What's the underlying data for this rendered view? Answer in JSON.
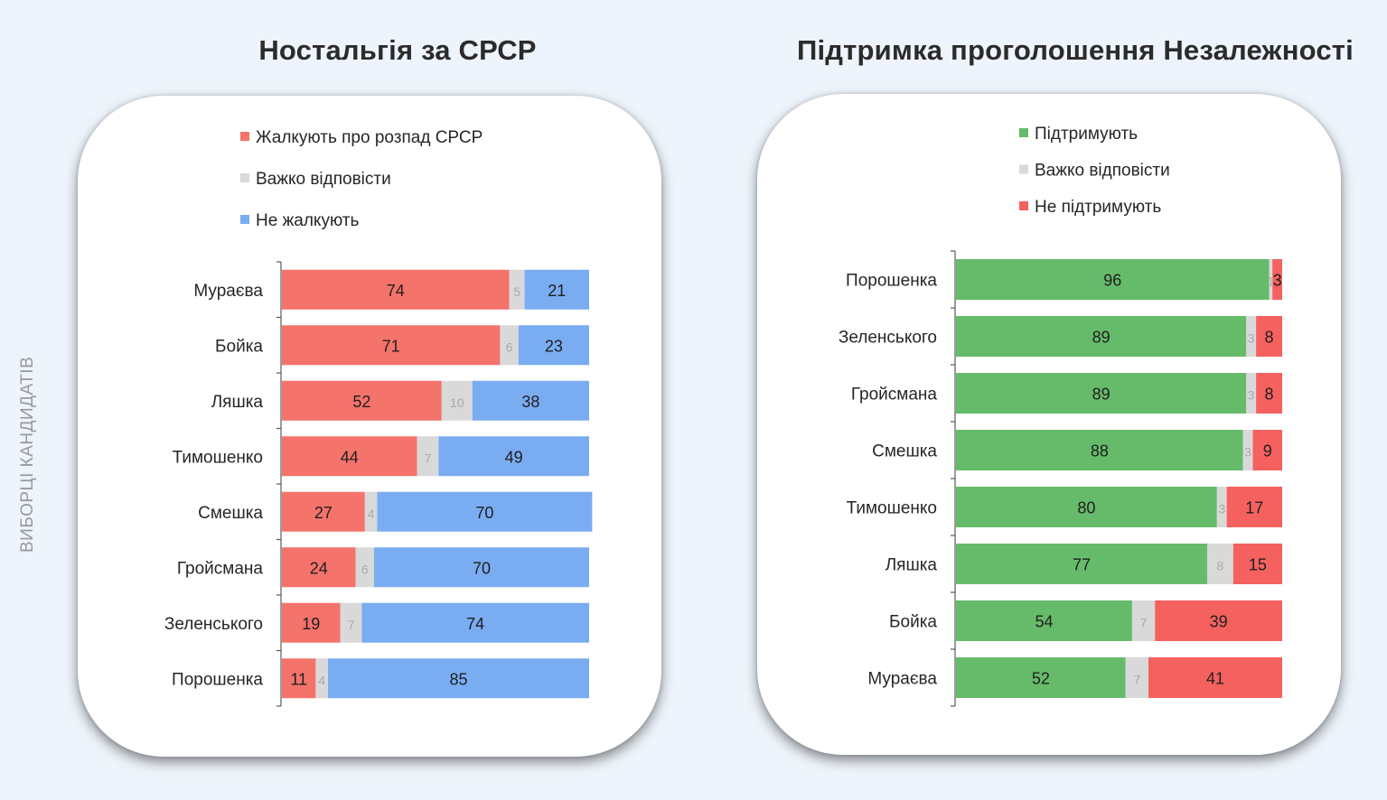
{
  "side_label": "ВИБОРЦІ КАНДИДАТІВ",
  "chart_data": [
    {
      "type": "bar",
      "orientation": "horizontal",
      "stacked": true,
      "title": "Ностальгія за СРСР",
      "categories": [
        "Мураєва",
        "Бойка",
        "Ляшка",
        "Тимошенко",
        "Смешка",
        "Гройсмана",
        "Зеленського",
        "Порошенка"
      ],
      "series": [
        {
          "name": "Жалкують про розпад СРСР",
          "color": "#f4736b",
          "values": [
            74,
            71,
            52,
            44,
            27,
            24,
            19,
            11
          ]
        },
        {
          "name": "Важко відповісти",
          "color": "#d9d9d9",
          "values": [
            5,
            6,
            10,
            7,
            4,
            6,
            7,
            4
          ]
        },
        {
          "name": "Не жалкують",
          "color": "#7aacf2",
          "values": [
            21,
            23,
            38,
            49,
            70,
            70,
            74,
            85
          ]
        }
      ],
      "legend_position": "top",
      "xlim": [
        0,
        100
      ],
      "grid": false
    },
    {
      "type": "bar",
      "orientation": "horizontal",
      "stacked": true,
      "title": "Підтримка проголошення Незалежності",
      "categories": [
        "Порошенка",
        "Зеленського",
        "Гройсмана",
        "Смешка",
        "Тимошенко",
        "Ляшка",
        "Бойка",
        "Мураєва"
      ],
      "series": [
        {
          "name": "Підтримують",
          "color": "#66bb6a",
          "values": [
            96,
            89,
            89,
            88,
            80,
            77,
            54,
            52
          ]
        },
        {
          "name": "Важко відповісти",
          "color": "#d9d9d9",
          "values": [
            1,
            3,
            3,
            3,
            3,
            8,
            7,
            7
          ]
        },
        {
          "name": "Не підтримують",
          "color": "#f4615f",
          "values": [
            3,
            8,
            8,
            9,
            17,
            15,
            39,
            41
          ]
        }
      ],
      "legend_position": "top",
      "xlim": [
        0,
        100
      ],
      "grid": false
    }
  ]
}
